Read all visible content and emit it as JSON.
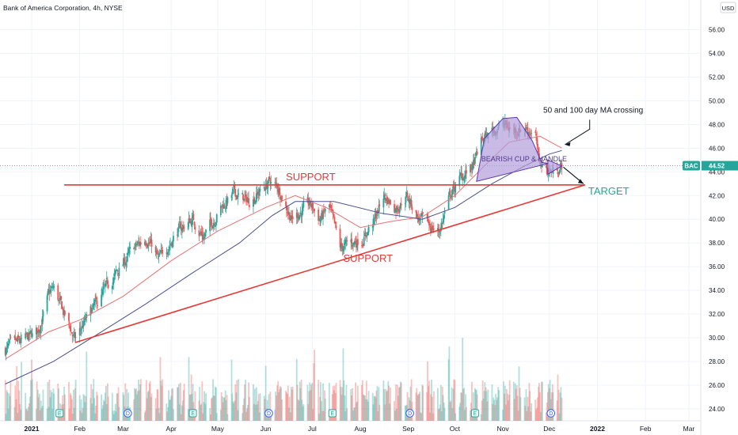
{
  "header": {
    "title": "Bank of America Corporation, 4h, NYSE"
  },
  "currency": "USD",
  "chart_data": {
    "type": "candlestick",
    "symbol": "BAC",
    "last_price": 44.52,
    "last_price_label": "44.52",
    "ylim": [
      23.0,
      57.5
    ],
    "y_ticks": [
      24,
      26,
      28,
      30,
      32,
      34,
      36,
      38,
      40,
      42,
      44,
      46,
      48,
      50,
      52,
      54,
      56
    ],
    "y_tick_labels": [
      "24.00",
      "26.00",
      "28.00",
      "30.00",
      "32.00",
      "34.00",
      "36.00",
      "38.00",
      "40.00",
      "42.00",
      "44.00",
      "46.00",
      "48.00",
      "50.00",
      "52.00",
      "54.00",
      "56.00"
    ],
    "x_ticks": [
      {
        "label": "2021",
        "date": "2021-01-01",
        "bold": true
      },
      {
        "label": "Feb",
        "date": "2021-02-01"
      },
      {
        "label": "Mar",
        "date": "2021-03-01"
      },
      {
        "label": "Apr",
        "date": "2021-04-01"
      },
      {
        "label": "May",
        "date": "2021-05-01"
      },
      {
        "label": "Jun",
        "date": "2021-06-01"
      },
      {
        "label": "Jul",
        "date": "2021-07-01"
      },
      {
        "label": "Aug",
        "date": "2021-08-01"
      },
      {
        "label": "Sep",
        "date": "2021-09-01"
      },
      {
        "label": "Oct",
        "date": "2021-10-01"
      },
      {
        "label": "Nov",
        "date": "2021-11-01"
      },
      {
        "label": "Dec",
        "date": "2021-12-01"
      },
      {
        "label": "2022",
        "date": "2022-01-01",
        "bold": true
      },
      {
        "label": "Feb",
        "date": "2022-02-01"
      },
      {
        "label": "Mar",
        "date": "2022-03-01"
      }
    ],
    "price_path": [
      [
        "2020-12-15",
        29.0
      ],
      [
        "2020-12-28",
        29.8
      ],
      [
        "2021-01-05",
        30.5
      ],
      [
        "2021-01-12",
        33.5
      ],
      [
        "2021-01-15",
        34.2
      ],
      [
        "2021-01-22",
        32.0
      ],
      [
        "2021-01-29",
        29.8
      ],
      [
        "2021-02-03",
        31.0
      ],
      [
        "2021-02-15",
        33.5
      ],
      [
        "2021-02-25",
        35.5
      ],
      [
        "2021-03-08",
        37.5
      ],
      [
        "2021-03-17",
        38.5
      ],
      [
        "2021-03-24",
        36.5
      ],
      [
        "2021-04-05",
        39.0
      ],
      [
        "2021-04-15",
        40.0
      ],
      [
        "2021-04-22",
        38.5
      ],
      [
        "2021-05-03",
        41.0
      ],
      [
        "2021-05-12",
        42.2
      ],
      [
        "2021-05-20",
        41.5
      ],
      [
        "2021-05-28",
        42.3
      ],
      [
        "2021-06-04",
        43.2
      ],
      [
        "2021-06-10",
        42.5
      ],
      [
        "2021-06-18",
        40.0
      ],
      [
        "2021-06-22",
        40.5
      ],
      [
        "2021-06-30",
        41.2
      ],
      [
        "2021-07-06",
        40.0
      ],
      [
        "2021-07-12",
        41.0
      ],
      [
        "2021-07-19",
        37.5
      ],
      [
        "2021-07-26",
        38.0
      ],
      [
        "2021-08-02",
        38.3
      ],
      [
        "2021-08-10",
        39.8
      ],
      [
        "2021-08-16",
        42.0
      ],
      [
        "2021-08-24",
        41.0
      ],
      [
        "2021-08-31",
        42.0
      ],
      [
        "2021-09-08",
        40.0
      ],
      [
        "2021-09-14",
        39.5
      ],
      [
        "2021-09-21",
        39.0
      ],
      [
        "2021-09-28",
        42.0
      ],
      [
        "2021-10-05",
        43.5
      ],
      [
        "2021-10-13",
        44.5
      ],
      [
        "2021-10-18",
        46.5
      ],
      [
        "2021-10-25",
        47.5
      ],
      [
        "2021-11-01",
        48.0
      ],
      [
        "2021-11-08",
        47.5
      ],
      [
        "2021-11-15",
        47.8
      ],
      [
        "2021-11-22",
        47.2
      ],
      [
        "2021-11-24",
        45.0
      ],
      [
        "2021-11-29",
        44.2
      ],
      [
        "2021-12-03",
        44.0
      ],
      [
        "2021-12-09",
        44.52
      ]
    ],
    "sma_fast_path": [
      [
        "2020-12-15",
        28.2
      ],
      [
        "2021-01-12",
        30.5
      ],
      [
        "2021-02-01",
        31.5
      ],
      [
        "2021-03-01",
        33.5
      ],
      [
        "2021-04-01",
        36.5
      ],
      [
        "2021-05-01",
        39.0
      ],
      [
        "2021-06-01",
        41.0
      ],
      [
        "2021-06-20",
        42.0
      ],
      [
        "2021-07-10",
        41.0
      ],
      [
        "2021-08-01",
        39.3
      ],
      [
        "2021-08-20",
        39.8
      ],
      [
        "2021-09-10",
        40.2
      ],
      [
        "2021-10-01",
        42.0
      ],
      [
        "2021-10-20",
        44.5
      ],
      [
        "2021-11-05",
        46.5
      ],
      [
        "2021-11-25",
        47.0
      ],
      [
        "2021-12-09",
        46.0
      ]
    ],
    "sma_slow_path": [
      [
        "2020-12-15",
        26.1
      ],
      [
        "2021-01-15",
        28.0
      ],
      [
        "2021-02-15",
        30.5
      ],
      [
        "2021-03-15",
        32.8
      ],
      [
        "2021-04-15",
        35.5
      ],
      [
        "2021-05-15",
        38.0
      ],
      [
        "2021-06-05",
        40.3
      ],
      [
        "2021-06-20",
        41.5
      ],
      [
        "2021-07-15",
        41.5
      ],
      [
        "2021-08-15",
        40.5
      ],
      [
        "2021-09-10",
        40.0
      ],
      [
        "2021-10-01",
        41.0
      ],
      [
        "2021-10-25",
        43.0
      ],
      [
        "2021-11-15",
        44.5
      ],
      [
        "2021-12-01",
        45.5
      ],
      [
        "2021-12-09",
        45.8
      ]
    ],
    "volume_max": 100,
    "annotations": {
      "support_top": "SUPPORT",
      "support_bottom": "SUPPORT",
      "target": "TARGET",
      "pattern": "BEARISH CUP & HANDLE",
      "ma_note": "50 and 100 day MA crossing"
    },
    "event_markers": [
      {
        "date": "2021-01-19",
        "type": "E"
      },
      {
        "date": "2021-03-04",
        "type": "D"
      },
      {
        "date": "2021-04-15",
        "type": "E"
      },
      {
        "date": "2021-06-03",
        "type": "D"
      },
      {
        "date": "2021-07-14",
        "type": "E"
      },
      {
        "date": "2021-09-02",
        "type": "D"
      },
      {
        "date": "2021-10-14",
        "type": "E"
      },
      {
        "date": "2021-12-02",
        "type": "D"
      }
    ],
    "colors": {
      "up": "#26a69a",
      "down": "#ef5350",
      "sma_fast": "#e57373",
      "sma_slow": "#4b4f8f",
      "support": "#e53935",
      "target": "#26a69a",
      "pattern_fill": "#b39ddb",
      "pattern_stroke": "#5e35b1",
      "price_line": "#26a69a"
    }
  }
}
